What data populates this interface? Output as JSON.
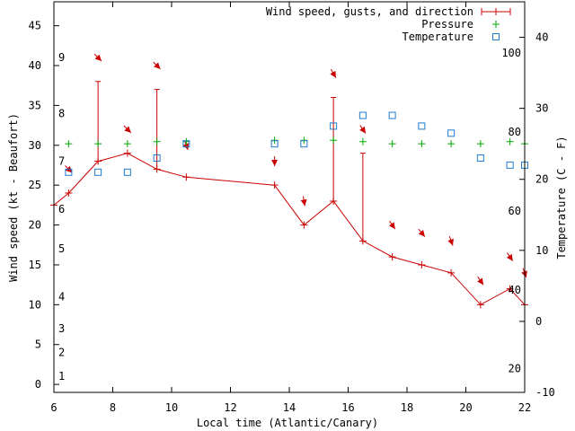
{
  "chart_data": {
    "type": "line",
    "xlabel": "Local time (Atlantic/Canary)",
    "ylabel_left": "Wind speed (kt - Beaufort)",
    "ylabel_right": "Temperature (C - F)",
    "xlim": [
      6,
      22
    ],
    "ylim_left": [
      -1,
      48
    ],
    "ylim_right": [
      -10,
      45
    ],
    "x_ticks": [
      "6",
      "8",
      "10",
      "12",
      "14",
      "16",
      "18",
      "20",
      "22"
    ],
    "y_left_ticks": [
      "0",
      "5",
      "10",
      "15",
      "20",
      "25",
      "30",
      "35",
      "40",
      "45"
    ],
    "y_right_ticks": [
      "-10",
      "0",
      "10",
      "20",
      "30",
      "40"
    ],
    "beaufort_labels": [
      {
        "text": "1",
        "kt": 1
      },
      {
        "text": "2",
        "kt": 4
      },
      {
        "text": "3",
        "kt": 7
      },
      {
        "text": "4",
        "kt": 11
      },
      {
        "text": "5",
        "kt": 17
      },
      {
        "text": "6",
        "kt": 22
      },
      {
        "text": "7",
        "kt": 28
      },
      {
        "text": "8",
        "kt": 34
      },
      {
        "text": "9",
        "kt": 41
      }
    ],
    "fahrenheit_labels": [
      {
        "text": "20",
        "f": 20
      },
      {
        "text": "40",
        "f": 40
      },
      {
        "text": "60",
        "f": 60
      },
      {
        "text": "80",
        "f": 80
      },
      {
        "text": "100",
        "f": 100
      }
    ],
    "legend": {
      "placement": "top-right",
      "entries": [
        "Wind speed, gusts, and direction",
        "Pressure",
        "Temperature"
      ]
    },
    "series": [
      {
        "name": "Wind speed, gusts, and direction",
        "color": "#cc0000",
        "x": [
          6,
          6.5,
          7.5,
          8.5,
          9.5,
          10.5,
          13.5,
          14.5,
          15.5,
          16.5,
          17.5,
          18.5,
          19.5,
          20.5,
          21.5,
          22
        ],
        "values": [
          22.5,
          24,
          28,
          29,
          27,
          26,
          25,
          20,
          23,
          18,
          16,
          15,
          14,
          10,
          12,
          10
        ],
        "gusts": [
          null,
          null,
          38,
          null,
          37,
          null,
          null,
          null,
          36,
          29,
          null,
          null,
          null,
          null,
          null,
          null
        ]
      },
      {
        "name": "Pressure",
        "color": "#00aa00",
        "marker": "plus",
        "x": [
          6.5,
          7.5,
          8.5,
          9.5,
          10.5,
          13.5,
          14.5,
          15.5,
          16.5,
          17.5,
          18.5,
          19.5,
          20.5,
          21.5,
          22
        ],
        "values": [
          25,
          25,
          25,
          25.3,
          25.3,
          25.5,
          25.5,
          25.5,
          25.3,
          25,
          25,
          25,
          25,
          25.3,
          25
        ]
      },
      {
        "name": "Temperature",
        "color": "#1f7bd1",
        "marker": "square",
        "x": [
          6.5,
          7.5,
          8.5,
          9.5,
          10.5,
          13.5,
          14.5,
          15.5,
          16.5,
          17.5,
          18.5,
          19.5,
          20.5,
          21.5,
          22
        ],
        "values": [
          21,
          21,
          21,
          23,
          25,
          25,
          25,
          27.5,
          29,
          29,
          27.5,
          26.5,
          23,
          22,
          22
        ]
      }
    ],
    "wind_arrows": [
      {
        "x": 6.5,
        "kt": 27,
        "dir_deg": 225
      },
      {
        "x": 7.5,
        "kt": 41,
        "dir_deg": 225
      },
      {
        "x": 8.5,
        "kt": 32,
        "dir_deg": 225
      },
      {
        "x": 9.5,
        "kt": 40,
        "dir_deg": 225
      },
      {
        "x": 10.5,
        "kt": 30,
        "dir_deg": 200
      },
      {
        "x": 13.5,
        "kt": 28,
        "dir_deg": 180
      },
      {
        "x": 14.5,
        "kt": 23,
        "dir_deg": 190
      },
      {
        "x": 15.5,
        "kt": 39,
        "dir_deg": 210
      },
      {
        "x": 16.5,
        "kt": 32,
        "dir_deg": 215
      },
      {
        "x": 17.5,
        "kt": 20,
        "dir_deg": 215
      },
      {
        "x": 18.5,
        "kt": 19,
        "dir_deg": 220
      },
      {
        "x": 19.5,
        "kt": 18,
        "dir_deg": 200
      },
      {
        "x": 20.5,
        "kt": 13,
        "dir_deg": 215
      },
      {
        "x": 21.5,
        "kt": 16,
        "dir_deg": 215
      },
      {
        "x": 22,
        "kt": 14,
        "dir_deg": 200
      }
    ],
    "grid": false
  }
}
